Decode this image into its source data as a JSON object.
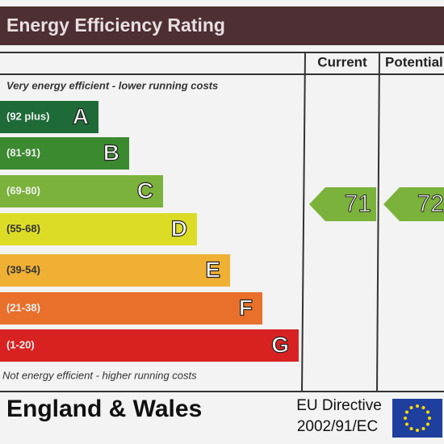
{
  "title": "Energy Efficiency Rating",
  "columns": {
    "current": "Current",
    "potential": "Potential"
  },
  "top_note": "Very energy efficient - lower running costs",
  "bottom_note": "Not energy efficient - higher running costs",
  "bands": [
    {
      "range": "(92 plus)",
      "letter": "A",
      "color": "#1e6b37"
    },
    {
      "range": "(81-91)",
      "letter": "B",
      "color": "#3b8a2f"
    },
    {
      "range": "(69-80)",
      "letter": "C",
      "color": "#7bb23b"
    },
    {
      "range": "(55-68)",
      "letter": "D",
      "color": "#dcdc26"
    },
    {
      "range": "(39-54)",
      "letter": "E",
      "color": "#efb034"
    },
    {
      "range": "(21-38)",
      "letter": "F",
      "color": "#e8702b"
    },
    {
      "range": "(1-20)",
      "letter": "G",
      "color": "#d82222"
    }
  ],
  "current": 71,
  "potential": 72,
  "footer": {
    "region": "England & Wales",
    "directive": "EU Directive",
    "directive_number": "2002/91/EC"
  }
}
